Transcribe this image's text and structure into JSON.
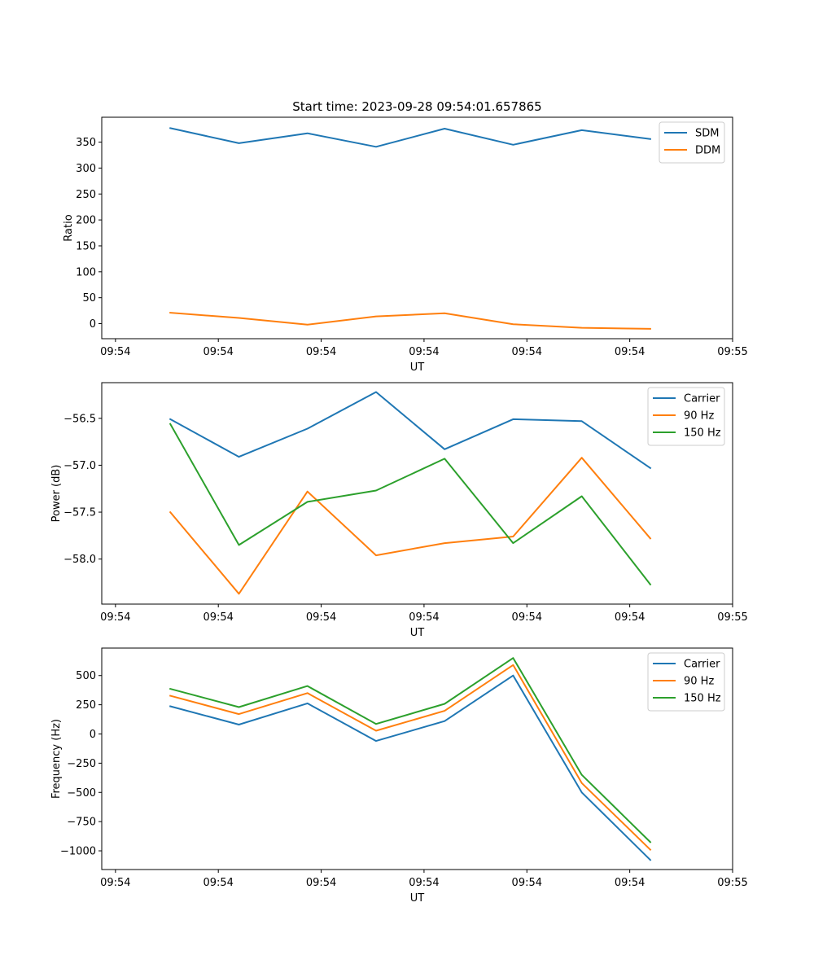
{
  "chart_data": [
    {
      "type": "line",
      "title": "Start time: 2023-09-28 09:54:01.657865",
      "xlabel": "UT",
      "ylabel": "Ratio",
      "x": [
        1,
        2,
        3,
        4,
        5,
        6,
        7,
        8
      ],
      "xlim": [
        0,
        9.2
      ],
      "xticks": [
        0.2,
        1.7,
        3.2,
        4.7,
        6.2,
        7.7,
        9.2
      ],
      "xtick_labels": [
        "09:54",
        "09:54",
        "09:54",
        "09:54",
        "09:54",
        "09:54",
        "09:55"
      ],
      "ylim": [
        -29,
        398
      ],
      "yticks": [
        0,
        50,
        100,
        150,
        200,
        250,
        300,
        350
      ],
      "ytick_labels": [
        "0",
        "50",
        "100",
        "150",
        "200",
        "250",
        "300",
        "350"
      ],
      "legend_position": "upper right",
      "series": [
        {
          "name": "SDM",
          "color": "#1f77b4",
          "values": [
            377,
            348,
            367,
            341,
            376,
            345,
            373,
            356
          ]
        },
        {
          "name": "DDM",
          "color": "#ff7f0e",
          "values": [
            21,
            11,
            -2,
            14,
            20,
            -1,
            -8,
            -10
          ]
        }
      ]
    },
    {
      "type": "line",
      "title": "",
      "xlabel": "UT",
      "ylabel": "Power (dB)",
      "x": [
        1,
        2,
        3,
        4,
        5,
        6,
        7,
        8
      ],
      "xlim": [
        0,
        9.2
      ],
      "xticks": [
        0.2,
        1.7,
        3.2,
        4.7,
        6.2,
        7.7,
        9.2
      ],
      "xtick_labels": [
        "09:54",
        "09:54",
        "09:54",
        "09:54",
        "09:54",
        "09:54",
        "09:55"
      ],
      "ylim": [
        -58.48,
        -56.12
      ],
      "yticks": [
        -58.0,
        -57.5,
        -57.0,
        -56.5
      ],
      "ytick_labels": [
        "−58.0",
        "−57.5",
        "−57.0",
        "−56.5"
      ],
      "legend_position": "upper right",
      "series": [
        {
          "name": "Carrier",
          "color": "#1f77b4",
          "values": [
            -56.51,
            -56.91,
            -56.61,
            -56.22,
            -56.83,
            -56.51,
            -56.53,
            -57.03
          ]
        },
        {
          "name": "90 Hz",
          "color": "#ff7f0e",
          "values": [
            -57.5,
            -58.37,
            -57.28,
            -57.96,
            -57.83,
            -57.76,
            -56.92,
            -57.78
          ]
        },
        {
          "name": "150 Hz",
          "color": "#2ca02c",
          "values": [
            -56.56,
            -57.85,
            -57.39,
            -57.27,
            -56.93,
            -57.83,
            -57.33,
            -58.27
          ]
        }
      ]
    },
    {
      "type": "line",
      "title": "",
      "xlabel": "UT",
      "ylabel": "Frequency (Hz)",
      "x": [
        1,
        2,
        3,
        4,
        5,
        6,
        7,
        8
      ],
      "xlim": [
        0,
        9.2
      ],
      "xticks": [
        0.2,
        1.7,
        3.2,
        4.7,
        6.2,
        7.7,
        9.2
      ],
      "xtick_labels": [
        "09:54",
        "09:54",
        "09:54",
        "09:54",
        "09:54",
        "09:54",
        "09:55"
      ],
      "ylim": [
        -1160,
        735
      ],
      "yticks": [
        -1000,
        -750,
        -500,
        -250,
        0,
        250,
        500
      ],
      "ytick_labels": [
        "−1000",
        "−750",
        "−500",
        "−250",
        "0",
        "250",
        "500"
      ],
      "legend_position": "upper right",
      "series": [
        {
          "name": "Carrier",
          "color": "#1f77b4",
          "values": [
            237,
            80,
            262,
            -60,
            110,
            500,
            -500,
            -1078
          ]
        },
        {
          "name": "90 Hz",
          "color": "#ff7f0e",
          "values": [
            327,
            170,
            350,
            28,
            198,
            590,
            -420,
            -990
          ]
        },
        {
          "name": "150 Hz",
          "color": "#2ca02c",
          "values": [
            386,
            230,
            410,
            86,
            258,
            650,
            -350,
            -925
          ]
        }
      ]
    }
  ]
}
